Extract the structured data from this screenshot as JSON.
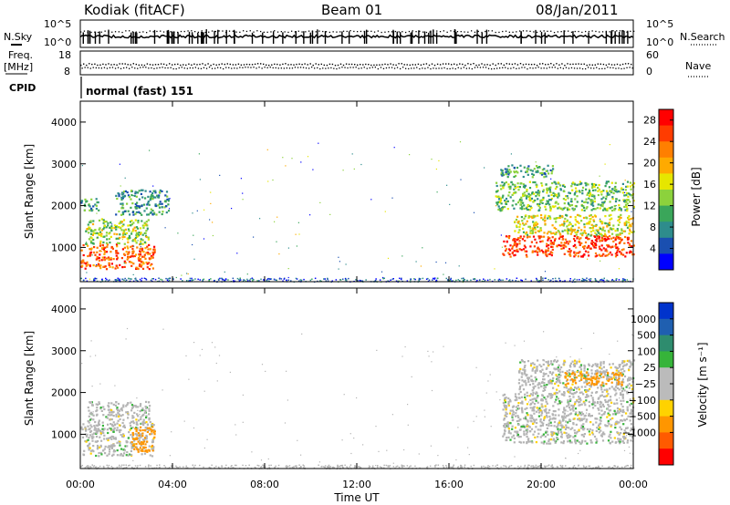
{
  "header": {
    "station": "Kodiak (fitACF)",
    "beam": "Beam 01",
    "date": "08/Jan/2011"
  },
  "left_labels": {
    "nsky": "N.Sky",
    "freq_line1": "Freq.",
    "freq_line2": "[MHz]",
    "cpid": "CPID"
  },
  "right_labels": {
    "nsearch": "N.Search",
    "nave": "Nave"
  },
  "noise_panel": {
    "left_ticks": [
      "10^5",
      "10^0"
    ],
    "right_ticks": [
      "10^5",
      "10^0"
    ]
  },
  "freq_panel": {
    "left_ticks": [
      "18",
      "8"
    ],
    "right_ticks": [
      "60",
      "0"
    ]
  },
  "cpid_text": "normal (fast) 151",
  "colors": {
    "power_scale": [
      "#0000ff",
      "#1a4fb0",
      "#2e8c8c",
      "#3aa65a",
      "#8cd23c",
      "#e6e600",
      "#ffaa00",
      "#ff7f00",
      "#ff3c00",
      "#ff0000"
    ],
    "velocity_scale": [
      "#0033cc",
      "#1f5fb0",
      "#2e8c6e",
      "#36b43a",
      "#bbbbbb",
      "#bbbbbb",
      "#ffd200",
      "#ff9600",
      "#ff5a00",
      "#ff0000"
    ],
    "ground_scatter": "#b4b4b4"
  },
  "chart_data": [
    {
      "type": "heatmap",
      "panel": "power",
      "ylabel": "Slant Range [km]",
      "xlabel": "",
      "x_ticks": [
        "00:00",
        "04:00",
        "08:00",
        "12:00",
        "16:00",
        "20:00",
        "00:00"
      ],
      "y_ticks": [
        "1000",
        "2000",
        "3000",
        "4000"
      ],
      "ylim": [
        180,
        4500
      ],
      "xlim_hours": [
        0,
        24
      ],
      "colorbar": {
        "label": "Power [dB]",
        "ticks": [
          "4",
          "8",
          "12",
          "16",
          "20",
          "24",
          "28"
        ],
        "range": [
          0,
          30
        ]
      },
      "regions": [
        {
          "t0": 0.0,
          "t1": 3.2,
          "r0": 500,
          "r1": 1100,
          "value": 24
        },
        {
          "t0": 0.2,
          "t1": 3.0,
          "r0": 1100,
          "r1": 1700,
          "value": 14
        },
        {
          "t0": 0.0,
          "t1": 0.8,
          "r0": 1900,
          "r1": 2200,
          "value": 10
        },
        {
          "t0": 1.5,
          "t1": 3.8,
          "r0": 1800,
          "r1": 2400,
          "value": 9
        },
        {
          "t0": 18.3,
          "t1": 24.0,
          "r0": 800,
          "r1": 1300,
          "value": 26
        },
        {
          "t0": 18.8,
          "t1": 24.0,
          "r0": 1300,
          "r1": 1800,
          "value": 16
        },
        {
          "t0": 18.0,
          "t1": 24.0,
          "r0": 1900,
          "r1": 2600,
          "value": 12
        },
        {
          "t0": 18.2,
          "t1": 20.5,
          "r0": 2700,
          "r1": 3000,
          "value": 10
        }
      ]
    },
    {
      "type": "heatmap",
      "panel": "velocity",
      "ylabel": "Slant Range [km]",
      "xlabel": "Time UT",
      "x_ticks": [
        "00:00",
        "04:00",
        "08:00",
        "12:00",
        "16:00",
        "20:00",
        "00:00"
      ],
      "y_ticks": [
        "1000",
        "2000",
        "3000",
        "4000"
      ],
      "ylim": [
        180,
        4500
      ],
      "xlim_hours": [
        0,
        24
      ],
      "colorbar": {
        "label": "Velocity [m s⁻¹]",
        "ticks": [
          "1000",
          "500",
          "100",
          "25",
          "−25",
          "−100",
          "−500",
          "−1000"
        ]
      },
      "regions": [
        {
          "t0": 0.0,
          "t1": 3.2,
          "r0": 500,
          "r1": 1300,
          "value": 0
        },
        {
          "t0": 2.2,
          "t1": 3.2,
          "r0": 600,
          "r1": 1200,
          "value": -150
        },
        {
          "t0": 0.3,
          "t1": 3.0,
          "r0": 1300,
          "r1": 1800,
          "value": 0
        },
        {
          "t0": 18.3,
          "t1": 24.0,
          "r0": 800,
          "r1": 2000,
          "value": 0
        },
        {
          "t0": 19.0,
          "t1": 24.0,
          "r0": 2000,
          "r1": 2800,
          "value": 0
        },
        {
          "t0": 21.0,
          "t1": 23.5,
          "r0": 2200,
          "r1": 2500,
          "value": -150
        }
      ]
    }
  ]
}
